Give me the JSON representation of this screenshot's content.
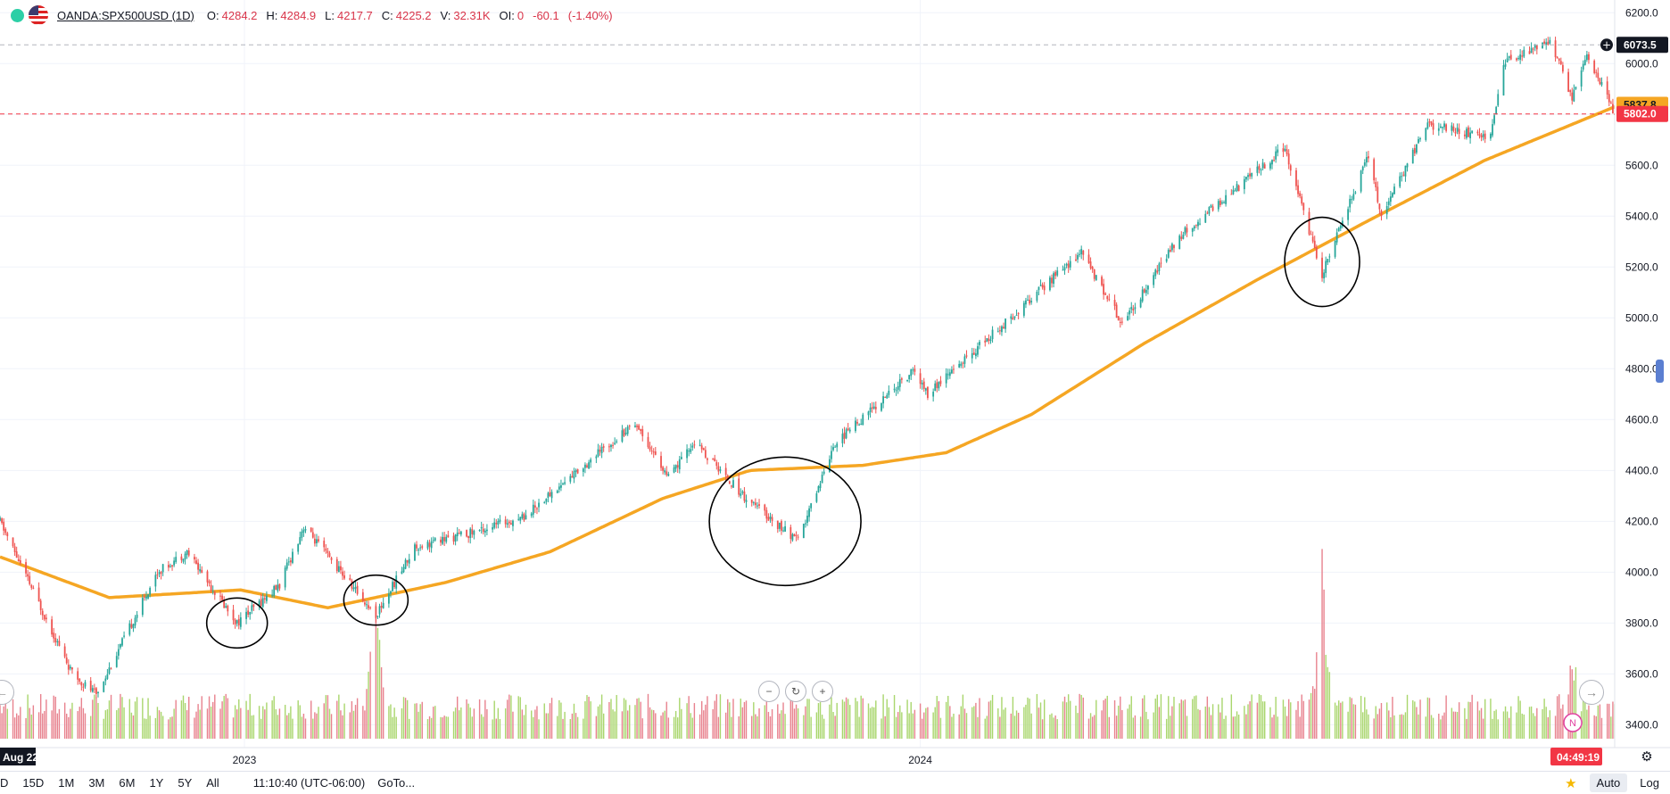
{
  "legend": {
    "symbol": "OANDA:SPX500USD (1D)",
    "o_label": "O:",
    "o": "4284.2",
    "h_label": "H:",
    "h": "4284.9",
    "l_label": "L:",
    "l": "4217.7",
    "c_label": "C:",
    "c": "4225.2",
    "vol_label": "V:",
    "vol": "32.31K",
    "oi_label": "OI:",
    "oi": "0",
    "change": "-60.1",
    "change_pct": "(-1.40%)"
  },
  "icons": {
    "status": "status-dot-icon",
    "flag": "us-flag-icon",
    "crosshair": "plus-circle-icon",
    "settings": "gear-icon",
    "star": "star-icon",
    "zoom_out": "zoom-out-icon",
    "reset": "reset-icon",
    "zoom_in": "zoom-in-icon",
    "scroll_left": "arrow-left-icon",
    "scroll_right": "arrow-right-icon",
    "news": "news-n-icon"
  },
  "colors": {
    "up": "#26a69a",
    "down": "#ef5350",
    "vol_up": "#a9d66d",
    "vol_down": "#e8828e",
    "ma": "#f5a623",
    "last_price": "#f23645",
    "crosshair": "#000000"
  },
  "price_labels": {
    "crosshair_price": "6073.5",
    "ma_price": "5837.8",
    "last_price": "5802.0",
    "countdown": "04:49:19",
    "news_badge": "N"
  },
  "time_labels": {
    "crosshair_date": "Aug 22"
  },
  "bottom_bar": {
    "ranges": [
      "D",
      "15D",
      "1M",
      "3M",
      "6M",
      "1Y",
      "5Y",
      "All"
    ],
    "clock": "11:10:40 (UTC-06:00)",
    "goto": "GoTo...",
    "auto": "Auto",
    "log": "Log"
  },
  "chart_data": {
    "type": "candlestick",
    "symbol": "OANDA:SPX500USD",
    "interval": "1D",
    "y_axis": {
      "ticks": [
        3400,
        3600,
        3800,
        4000,
        4200,
        4400,
        4600,
        4800,
        5000,
        5200,
        5400,
        5600,
        5800,
        6000,
        6200
      ],
      "tick_labels": [
        "3400.0",
        "3600.0",
        "3800.0",
        "4000.0",
        "4200.0",
        "4400.0",
        "4600.0",
        "4800.0",
        "5000.0",
        "5200.0",
        "5400.0",
        "5600.0",
        "5800.0",
        "6000.0",
        "6200.0"
      ],
      "ylim": [
        3310,
        6250
      ],
      "partial_label": "4800.0"
    },
    "x_axis": {
      "ticks": [
        {
          "date": "2023-01-01",
          "label": "2023"
        },
        {
          "date": "2024-01-01",
          "label": "2024"
        }
      ],
      "xlim": [
        "2022-08-22",
        "2025-01-10"
      ]
    },
    "price_keypoints": [
      [
        "2022-08-22",
        4200
      ],
      [
        "2022-09-30",
        3600
      ],
      [
        "2022-10-13",
        3520
      ],
      [
        "2022-11-15",
        4000
      ],
      [
        "2022-12-01",
        4080
      ],
      [
        "2022-12-28",
        3800
      ],
      [
        "2023-01-20",
        3950
      ],
      [
        "2023-02-02",
        4180
      ],
      [
        "2023-03-13",
        3830
      ],
      [
        "2023-04-03",
        4100
      ],
      [
        "2023-05-01",
        4150
      ],
      [
        "2023-06-01",
        4220
      ],
      [
        "2023-07-31",
        4590
      ],
      [
        "2023-08-18",
        4370
      ],
      [
        "2023-09-01",
        4510
      ],
      [
        "2023-09-29",
        4290
      ],
      [
        "2023-10-27",
        4120
      ],
      [
        "2023-11-15",
        4500
      ],
      [
        "2023-12-28",
        4790
      ],
      [
        "2024-01-05",
        4700
      ],
      [
        "2024-03-28",
        5260
      ],
      [
        "2024-04-19",
        4980
      ],
      [
        "2024-05-20",
        5320
      ],
      [
        "2024-07-16",
        5670
      ],
      [
        "2024-08-05",
        5170
      ],
      [
        "2024-08-30",
        5640
      ],
      [
        "2024-09-06",
        5400
      ],
      [
        "2024-10-01",
        5760
      ],
      [
        "2024-11-04",
        5710
      ],
      [
        "2024-11-11",
        6000
      ],
      [
        "2024-12-06",
        6090
      ],
      [
        "2024-12-18",
        5870
      ],
      [
        "2024-12-26",
        6040
      ],
      [
        "2025-01-10",
        5802
      ]
    ],
    "ma_keypoints": [
      [
        "2022-08-22",
        4060
      ],
      [
        "2022-10-20",
        3900
      ],
      [
        "2022-12-30",
        3930
      ],
      [
        "2023-02-15",
        3860
      ],
      [
        "2023-04-20",
        3960
      ],
      [
        "2023-06-15",
        4080
      ],
      [
        "2023-08-15",
        4290
      ],
      [
        "2023-10-01",
        4400
      ],
      [
        "2023-12-01",
        4420
      ],
      [
        "2024-01-15",
        4470
      ],
      [
        "2024-03-01",
        4620
      ],
      [
        "2024-05-01",
        4900
      ],
      [
        "2024-07-01",
        5150
      ],
      [
        "2024-09-01",
        5390
      ],
      [
        "2024-11-01",
        5620
      ],
      [
        "2025-01-10",
        5830
      ]
    ],
    "volume_spikes": [
      [
        "2023-03-13",
        0.9
      ],
      [
        "2024-08-05",
        1.0
      ],
      [
        "2024-12-18",
        0.45
      ],
      [
        "2024-12-20",
        0.42
      ]
    ],
    "annotations": [
      {
        "type": "circle",
        "center": [
          "2022-12-28",
          3800
        ]
      },
      {
        "type": "circle",
        "center": [
          "2023-03-13",
          3890
        ]
      },
      {
        "type": "circle",
        "center": [
          "2023-10-20",
          4200
        ]
      },
      {
        "type": "circle",
        "center": [
          "2024-08-05",
          5220
        ]
      }
    ],
    "horizontal_lines": [
      {
        "value": 6073.5,
        "style": "dashed",
        "color": "#b2b5be"
      },
      {
        "value": 5802.0,
        "style": "dashed",
        "color": "#f23645"
      }
    ]
  }
}
